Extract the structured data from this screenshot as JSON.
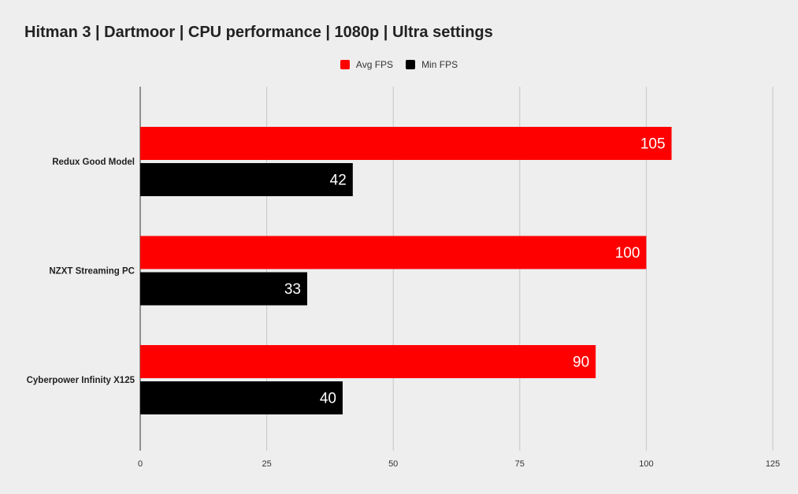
{
  "chart_data": {
    "type": "bar",
    "orientation": "horizontal",
    "title": "Hitman 3 | Dartmoor | CPU performance | 1080p | Ultra settings",
    "categories": [
      "Redux Good Model",
      "NZXT Streaming PC",
      "Cyberpower Infinity X125"
    ],
    "series": [
      {
        "name": "Avg FPS",
        "color": "#ff0000",
        "values": [
          105,
          100,
          90
        ]
      },
      {
        "name": "Min FPS",
        "color": "#000000",
        "values": [
          42,
          33,
          40
        ]
      }
    ],
    "xlim": [
      0,
      125
    ],
    "xticks": [
      0,
      25,
      50,
      75,
      100,
      125
    ],
    "grid": true,
    "legend_position": "top",
    "data_labels": true,
    "xlabel": "",
    "ylabel": ""
  }
}
